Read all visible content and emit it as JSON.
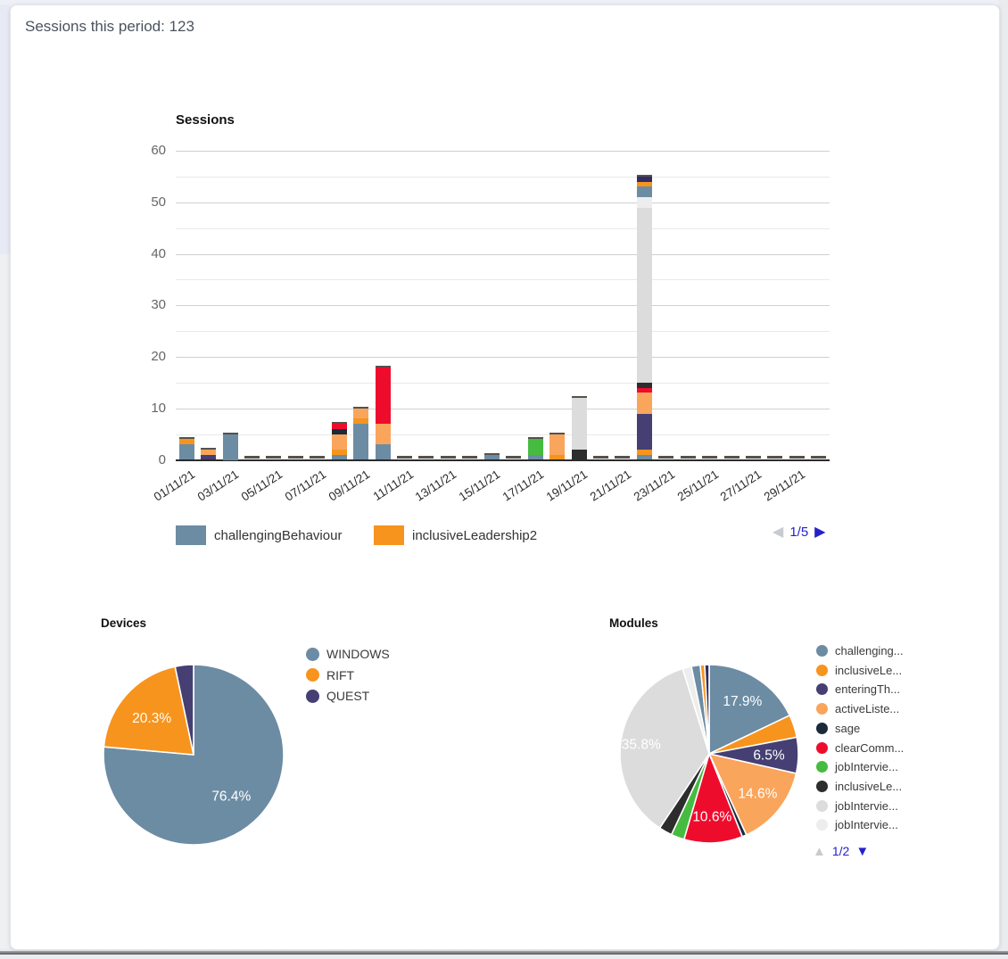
{
  "page": {
    "header_title": "Sessions this period: 123"
  },
  "palette": {
    "blueGray": "#6C8CA4",
    "orange": "#F7941E",
    "purple": "#453F73",
    "peach": "#FAA55C",
    "sage": "#1B2A3A",
    "red": "#EE0C2D",
    "green": "#45BC3F",
    "black": "#2D2D2D",
    "lightGray": "#DCDCDC",
    "lighterGray": "#EDEDED",
    "navy": "#312C63",
    "cap": "#56514B",
    "pagination_blue": "#2421CB",
    "pagination_gray": "#C7CBD0"
  },
  "chart_data": [
    {
      "id": "sessions",
      "type": "bar",
      "stacked": true,
      "title": "Sessions",
      "total_sessions": 123,
      "ylim": [
        0,
        60
      ],
      "y_ticks": [
        0,
        10,
        20,
        30,
        40,
        50,
        60
      ],
      "grid": "on",
      "x_tick_labels_shown": [
        "01/11/21",
        "03/11/21",
        "05/11/21",
        "07/11/21",
        "09/11/21",
        "11/11/21",
        "13/11/21",
        "15/11/21",
        "17/11/21",
        "19/11/21",
        "21/11/21",
        "23/11/21",
        "25/11/21",
        "27/11/21",
        "29/11/21"
      ],
      "bars": [
        {
          "date": "01/11/21",
          "segments": [
            [
              "blueGray",
              3
            ],
            [
              "orange",
              1
            ]
          ]
        },
        {
          "date": "02/11/21",
          "segments": [
            [
              "purple",
              1
            ],
            [
              "peach",
              1
            ]
          ]
        },
        {
          "date": "03/11/21",
          "segments": [
            [
              "blueGray",
              5
            ]
          ]
        },
        {
          "date": "04/11/21",
          "segments": []
        },
        {
          "date": "05/11/21",
          "segments": []
        },
        {
          "date": "06/11/21",
          "segments": []
        },
        {
          "date": "07/11/21",
          "segments": []
        },
        {
          "date": "08/11/21",
          "segments": [
            [
              "blueGray",
              1
            ],
            [
              "orange",
              1
            ],
            [
              "peach",
              3
            ],
            [
              "sage",
              1
            ],
            [
              "red",
              1
            ]
          ]
        },
        {
          "date": "09/11/21",
          "segments": [
            [
              "blueGray",
              7
            ],
            [
              "orange",
              1
            ],
            [
              "peach",
              2
            ]
          ]
        },
        {
          "date": "10/11/21",
          "segments": [
            [
              "blueGray",
              3
            ],
            [
              "peach",
              4
            ],
            [
              "red",
              11
            ]
          ]
        },
        {
          "date": "11/11/21",
          "segments": []
        },
        {
          "date": "12/11/21",
          "segments": []
        },
        {
          "date": "13/11/21",
          "segments": []
        },
        {
          "date": "14/11/21",
          "segments": []
        },
        {
          "date": "15/11/21",
          "segments": [
            [
              "blueGray",
              1
            ]
          ]
        },
        {
          "date": "16/11/21",
          "segments": []
        },
        {
          "date": "17/11/21",
          "segments": [
            [
              "blueGray",
              1
            ],
            [
              "green",
              3
            ]
          ]
        },
        {
          "date": "18/11/21",
          "segments": [
            [
              "orange",
              1
            ],
            [
              "peach",
              4
            ]
          ]
        },
        {
          "date": "19/11/21",
          "segments": [
            [
              "black",
              2
            ],
            [
              "lightGray",
              10
            ]
          ]
        },
        {
          "date": "20/11/21",
          "segments": []
        },
        {
          "date": "21/11/21",
          "segments": []
        },
        {
          "date": "22/11/21",
          "segments": [
            [
              "blueGray",
              1
            ],
            [
              "orange",
              1
            ],
            [
              "purple",
              7
            ],
            [
              "peach",
              4
            ],
            [
              "red",
              1
            ],
            [
              "black",
              1
            ],
            [
              "lightGray",
              34
            ],
            [
              "lighterGray",
              2
            ],
            [
              "blueGray",
              2
            ],
            [
              "orange",
              1
            ],
            [
              "navy",
              1
            ]
          ]
        },
        {
          "date": "23/11/21",
          "segments": []
        },
        {
          "date": "24/11/21",
          "segments": []
        },
        {
          "date": "25/11/21",
          "segments": []
        },
        {
          "date": "26/11/21",
          "segments": []
        },
        {
          "date": "27/11/21",
          "segments": []
        },
        {
          "date": "28/11/21",
          "segments": []
        },
        {
          "date": "29/11/21",
          "segments": []
        },
        {
          "date": "30/11/21",
          "segments": []
        }
      ],
      "legend": {
        "items": [
          {
            "label": "challengingBehaviour",
            "color": "blueGray"
          },
          {
            "label": "inclusiveLeadership2",
            "color": "orange"
          }
        ],
        "pagination": {
          "label": "1/5"
        }
      }
    },
    {
      "id": "devices",
      "type": "pie",
      "title": "Devices",
      "slices": [
        {
          "label": "WINDOWS",
          "color": "blueGray",
          "pct": 76.4,
          "pct_label": "76.4%"
        },
        {
          "label": "RIFT",
          "color": "orange",
          "pct": 20.3,
          "pct_label": "20.3%"
        },
        {
          "label": "QUEST",
          "color": "purple",
          "pct": 3.3
        }
      ],
      "legend": {
        "items": [
          {
            "label": "WINDOWS",
            "color": "blueGray"
          },
          {
            "label": "RIFT",
            "color": "orange"
          },
          {
            "label": "QUEST",
            "color": "purple"
          }
        ]
      }
    },
    {
      "id": "modules",
      "type": "pie",
      "title": "Modules",
      "slices": [
        {
          "label": "challenging...",
          "color": "blueGray",
          "pct": 17.9,
          "pct_label": "17.9%"
        },
        {
          "label": "inclusiveLe...",
          "color": "orange",
          "pct": 4.1
        },
        {
          "label": "enteringTh...",
          "color": "purple",
          "pct": 6.5,
          "pct_label": "6.5%"
        },
        {
          "label": "activeListe...",
          "color": "peach",
          "pct": 14.6,
          "pct_label": "14.6%"
        },
        {
          "label": "sage",
          "color": "sage",
          "pct": 0.8
        },
        {
          "label": "clearComm...",
          "color": "red",
          "pct": 10.6,
          "pct_label": "10.6%"
        },
        {
          "label": "jobIntervie...",
          "color": "green",
          "pct": 2.4
        },
        {
          "label": "inclusiveLe...",
          "color": "black",
          "pct": 2.4
        },
        {
          "label": "jobIntervie...",
          "color": "lightGray",
          "pct": 35.8,
          "pct_label": "35.8%"
        },
        {
          "label": "jobIntervie...",
          "color": "lighterGray",
          "pct": 1.6
        },
        {
          "color": "blueGray",
          "pct": 1.6
        },
        {
          "color": "orange",
          "pct": 0.8
        },
        {
          "color": "navy",
          "pct": 0.8
        }
      ],
      "legend": {
        "items": [
          {
            "label": "challenging...",
            "color": "blueGray"
          },
          {
            "label": "inclusiveLe...",
            "color": "orange"
          },
          {
            "label": "enteringTh...",
            "color": "purple"
          },
          {
            "label": "activeListe...",
            "color": "peach"
          },
          {
            "label": "sage",
            "color": "sage"
          },
          {
            "label": "clearComm...",
            "color": "red"
          },
          {
            "label": "jobIntervie...",
            "color": "green"
          },
          {
            "label": "inclusiveLe...",
            "color": "black"
          },
          {
            "label": "jobIntervie...",
            "color": "lightGray"
          },
          {
            "label": "jobIntervie...",
            "color": "lighterGray"
          }
        ],
        "pagination": {
          "label": "1/2"
        }
      }
    }
  ],
  "pagination_glyphs": {
    "prev": "◀",
    "next": "▶",
    "up": "▲",
    "down": "▼"
  }
}
